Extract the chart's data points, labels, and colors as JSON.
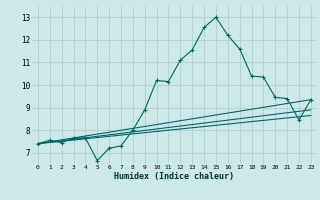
{
  "xlabel": "Humidex (Indice chaleur)",
  "bg_color": "#cce8e8",
  "line_color": "#006666",
  "grid_color": "#aacccc",
  "xlim": [
    -0.5,
    23.5
  ],
  "ylim": [
    6.5,
    13.5
  ],
  "xticks": [
    0,
    1,
    2,
    3,
    4,
    5,
    6,
    7,
    8,
    9,
    10,
    11,
    12,
    13,
    14,
    15,
    16,
    17,
    18,
    19,
    20,
    21,
    22,
    23
  ],
  "yticks": [
    7,
    8,
    9,
    10,
    11,
    12,
    13
  ],
  "main_line_x": [
    0,
    1,
    2,
    3,
    4,
    5,
    6,
    7,
    8,
    9,
    10,
    11,
    12,
    13,
    14,
    15,
    16,
    17,
    18,
    19,
    20,
    21,
    22,
    23
  ],
  "main_line_y": [
    7.4,
    7.55,
    7.45,
    7.65,
    7.65,
    6.65,
    7.2,
    7.3,
    8.0,
    8.9,
    10.2,
    10.15,
    11.1,
    11.55,
    12.55,
    13.0,
    12.2,
    11.6,
    10.4,
    10.35,
    9.45,
    9.4,
    8.45,
    9.35
  ],
  "upper_line_x": [
    0,
    23
  ],
  "upper_line_y": [
    7.4,
    9.35
  ],
  "lower_line1_x": [
    0,
    23
  ],
  "lower_line1_y": [
    7.4,
    8.9
  ],
  "lower_line2_x": [
    0,
    23
  ],
  "lower_line2_y": [
    7.4,
    8.65
  ]
}
